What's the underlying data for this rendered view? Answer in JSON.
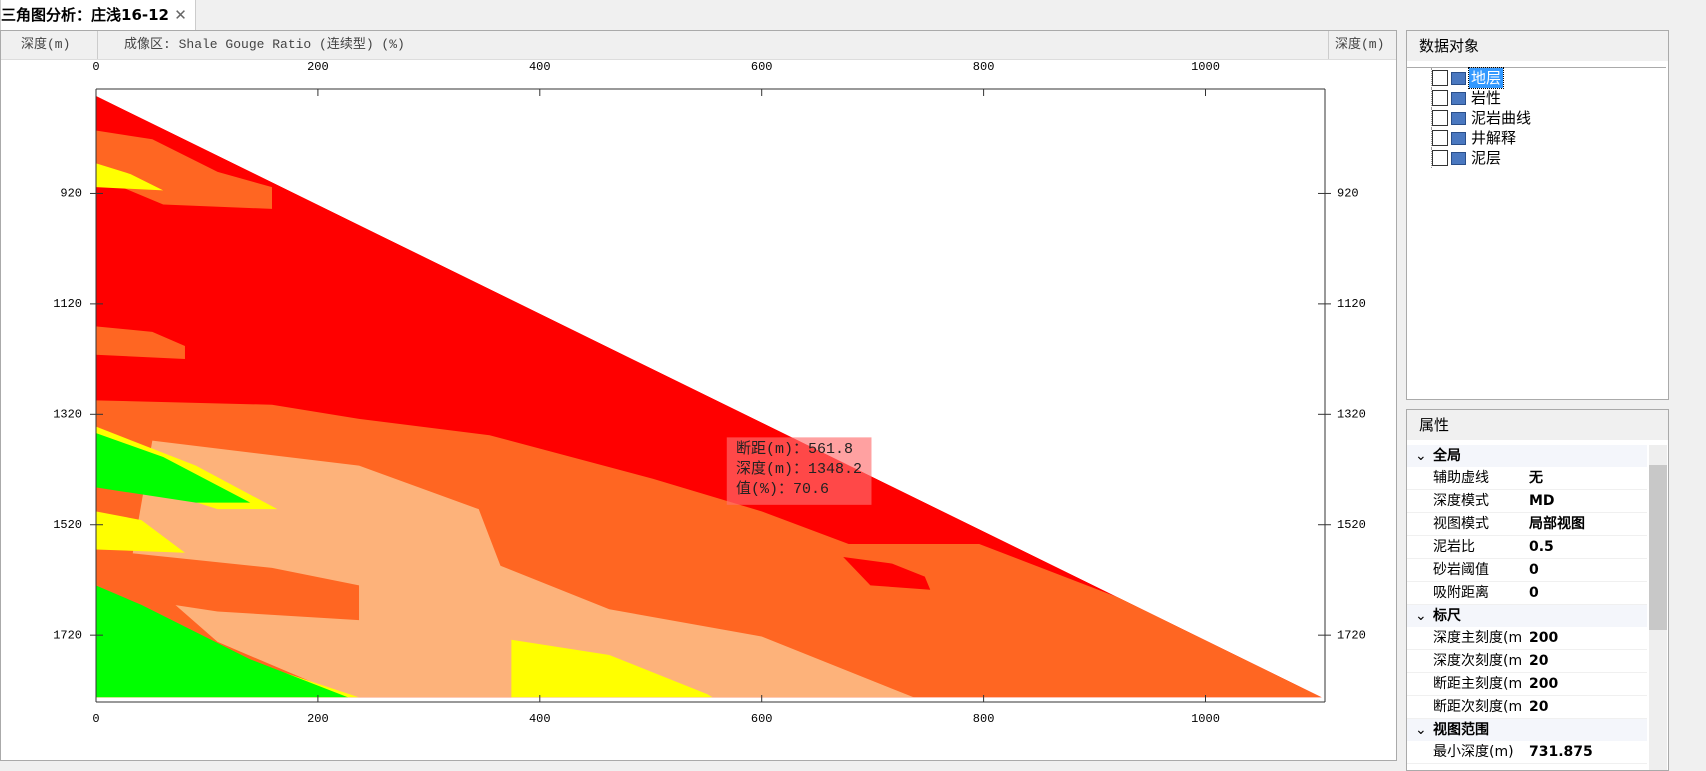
{
  "tab": {
    "title": "三角图分析：庄浅16-12"
  },
  "chart_header": {
    "left": "深度(m)",
    "center": "成像区: Shale Gouge Ratio (连续型) (%)",
    "right": "深度(m)"
  },
  "chart_data": {
    "type": "heatmap",
    "xlim": [
      0,
      1105
    ],
    "ylim": [
      743.5,
      1832
    ],
    "xticks": [
      0,
      200,
      400,
      600,
      800,
      1000
    ],
    "yticks": [
      920,
      1120,
      1320,
      1520,
      1720
    ],
    "tooltip": [
      "断距(m)：561.8",
      "深度(m)：1348.2",
      "值(%)：70.6"
    ]
  },
  "data_objects": {
    "title": "数据对象",
    "items": [
      "地层",
      "岩性",
      "泥岩曲线",
      "井解释",
      "泥层"
    ]
  },
  "properties": {
    "title": "属性",
    "groups": [
      {
        "name": "全局",
        "rows": [
          [
            "辅助虚线",
            "无"
          ],
          [
            "深度模式",
            "MD"
          ],
          [
            "视图模式",
            "局部视图"
          ],
          [
            "泥岩比",
            0.5
          ],
          [
            "砂岩阈值",
            0
          ],
          [
            "吸附距离",
            0
          ]
        ]
      },
      {
        "name": "标尺",
        "rows": [
          [
            "深度主刻度(m",
            200
          ],
          [
            "深度次刻度(m",
            20
          ],
          [
            "断距主刻度(m",
            200
          ],
          [
            "断距次刻度(m",
            20
          ]
        ]
      },
      {
        "name": "视图范围",
        "rows": [
          [
            "最小深度(m)",
            731.875
          ]
        ]
      }
    ]
  }
}
